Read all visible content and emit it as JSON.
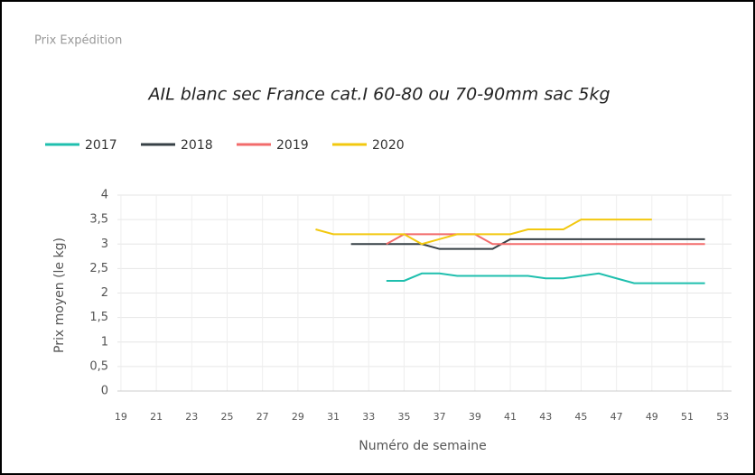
{
  "panel_title": "Prix Expédition",
  "chart_data": {
    "type": "line",
    "title": "AIL blanc sec France cat.I 60-80 ou 70-90mm sac 5kg",
    "x_label": "Numéro de semaine",
    "y_label": "Prix moyen  (le kg)",
    "x": [
      30,
      31,
      32,
      33,
      34,
      35,
      36,
      37,
      38,
      39,
      40,
      41,
      42,
      43,
      44,
      45,
      46,
      47,
      48,
      49,
      50,
      51,
      52
    ],
    "series": [
      {
        "name": "2017",
        "color": "#1fbfae",
        "values": [
          null,
          null,
          null,
          null,
          2.25,
          2.25,
          2.4,
          2.4,
          2.35,
          2.35,
          2.35,
          2.35,
          2.35,
          2.3,
          2.3,
          2.35,
          2.4,
          2.3,
          2.2,
          2.2,
          2.2,
          2.2,
          2.2
        ]
      },
      {
        "name": "2018",
        "color": "#374046",
        "values": [
          null,
          null,
          3,
          3,
          3,
          3,
          3,
          2.9,
          2.9,
          2.9,
          2.9,
          3.1,
          3.1,
          3.1,
          3.1,
          3.1,
          3.1,
          3.1,
          3.1,
          3.1,
          3.1,
          3.1,
          3.1
        ]
      },
      {
        "name": "2019",
        "color": "#f26b6b",
        "values": [
          null,
          null,
          null,
          null,
          3,
          3.2,
          3.2,
          3.2,
          3.2,
          3.2,
          3,
          3,
          3,
          3,
          3,
          3,
          3,
          3,
          3,
          3,
          3,
          3,
          3
        ]
      },
      {
        "name": "2020",
        "color": "#f2c80f",
        "values": [
          3.3,
          3.2,
          3.2,
          3.2,
          3.2,
          3.2,
          3,
          3.1,
          3.2,
          3.2,
          3.2,
          3.2,
          3.3,
          3.3,
          3.3,
          3.5,
          3.5,
          3.5,
          3.5,
          3.5,
          null,
          null,
          null
        ]
      }
    ],
    "xlim": [
      18.8,
      53.5
    ],
    "xticks": [
      19,
      21,
      23,
      25,
      27,
      29,
      31,
      33,
      35,
      37,
      39,
      41,
      43,
      45,
      47,
      49,
      51,
      53
    ],
    "ylim": [
      0,
      4
    ],
    "yticks": [
      0,
      {
        "value": 0.5,
        "label": "0,5"
      },
      1,
      {
        "value": 1.5,
        "label": "1,5"
      },
      2,
      {
        "value": 2.5,
        "label": "2,5"
      },
      3,
      {
        "value": 3.5,
        "label": "3,5"
      },
      4
    ],
    "grid": true,
    "legend": "top-left"
  }
}
